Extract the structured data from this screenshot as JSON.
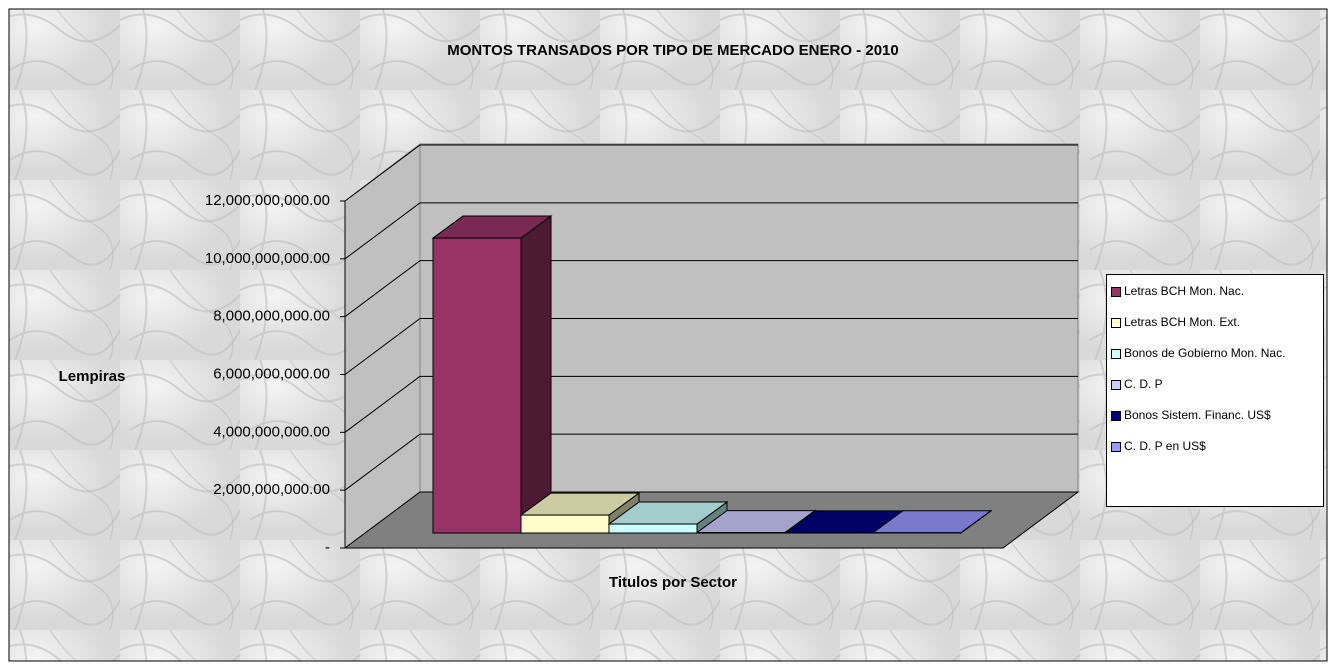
{
  "chart_data": {
    "type": "bar3d",
    "title": "MONTOS TRANSADOS POR TIPO DE MERCADO ENERO - 2010",
    "y_label": "Lempiras",
    "x_label": "Titulos por Sector",
    "ylim": [
      0,
      12000000000
    ],
    "yticks": [
      {
        "value": 0,
        "label": "-"
      },
      {
        "value": 2000000000,
        "label": "2,000,000,000.00"
      },
      {
        "value": 4000000000,
        "label": "4,000,000,000.00"
      },
      {
        "value": 6000000000,
        "label": "6,000,000,000.00"
      },
      {
        "value": 8000000000,
        "label": "8,000,000,000.00"
      },
      {
        "value": 10000000000,
        "label": "10,000,000,000.00"
      },
      {
        "value": 12000000000,
        "label": "12,000,000,000.00"
      }
    ],
    "grid": true,
    "legend": "right",
    "series": [
      {
        "name": "Letras BCH Mon. Nac.",
        "color": "#993366",
        "values": [
          10200000000
        ]
      },
      {
        "name": "Letras BCH Mon. Ext.",
        "color": "#FFFFCC",
        "values": [
          620000000
        ]
      },
      {
        "name": "Bonos de Gobierno Mon. Nac.",
        "color": "#CCFFFF",
        "values": [
          310000000
        ]
      },
      {
        "name": "C. D. P",
        "color": "#CCCCFF",
        "values": [
          15000000
        ]
      },
      {
        "name": "Bonos Sistem. Financ. US$",
        "color": "#000080",
        "values": [
          5000000
        ]
      },
      {
        "name": "C. D. P en US$",
        "color": "#9999FF",
        "values": [
          10000000
        ]
      }
    ]
  }
}
